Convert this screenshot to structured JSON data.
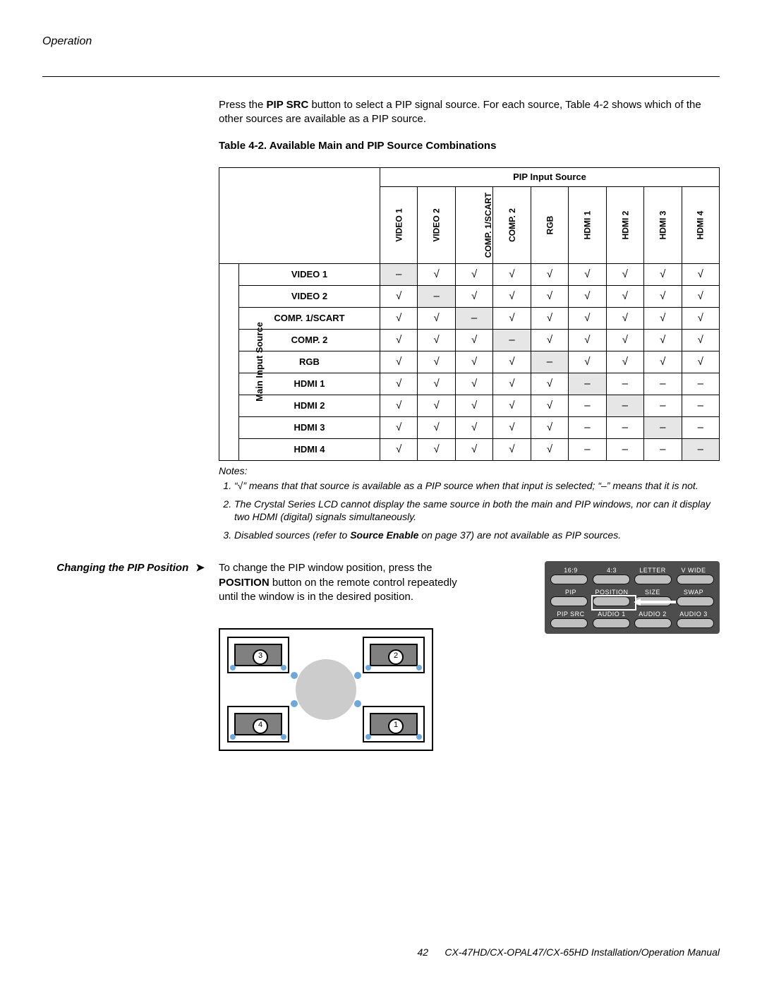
{
  "header": {
    "section": "Operation"
  },
  "intro": {
    "pre": "Press the ",
    "bold": "PIP SRC",
    "post": " button to select a PIP signal source. For each source, Table 4-2 shows which of the other sources are available as a PIP source."
  },
  "table": {
    "caption": "Table 4-2. Available Main and PIP Source Combinations",
    "pipHeader": "PIP Input Source",
    "mainHeader": "Main Input Source",
    "columns": [
      "VIDEO 1",
      "VIDEO 2",
      "COMP. 1/SCART",
      "COMP. 2",
      "RGB",
      "HDMI 1",
      "HDMI 2",
      "HDMI 3",
      "HDMI 4"
    ],
    "rows": [
      "VIDEO 1",
      "VIDEO 2",
      "COMP. 1/SCART",
      "COMP. 2",
      "RGB",
      "HDMI 1",
      "HDMI 2",
      "HDMI 3",
      "HDMI 4"
    ],
    "check": "√",
    "dash": "–",
    "matrix": [
      [
        "d",
        "c",
        "c",
        "c",
        "c",
        "c",
        "c",
        "c",
        "c"
      ],
      [
        "c",
        "d",
        "c",
        "c",
        "c",
        "c",
        "c",
        "c",
        "c"
      ],
      [
        "c",
        "c",
        "d",
        "c",
        "c",
        "c",
        "c",
        "c",
        "c"
      ],
      [
        "c",
        "c",
        "c",
        "d",
        "c",
        "c",
        "c",
        "c",
        "c"
      ],
      [
        "c",
        "c",
        "c",
        "c",
        "d",
        "c",
        "c",
        "c",
        "c"
      ],
      [
        "c",
        "c",
        "c",
        "c",
        "c",
        "d",
        "x",
        "x",
        "x"
      ],
      [
        "c",
        "c",
        "c",
        "c",
        "c",
        "x",
        "d",
        "x",
        "x"
      ],
      [
        "c",
        "c",
        "c",
        "c",
        "c",
        "x",
        "x",
        "d",
        "x"
      ],
      [
        "c",
        "c",
        "c",
        "c",
        "c",
        "x",
        "x",
        "x",
        "d"
      ]
    ]
  },
  "notes": {
    "label": "Notes:",
    "items": [
      {
        "t": "“√” means that that source is available as a PIP source when that input is selected; “–” means that it is not."
      },
      {
        "t": "The Crystal Series LCD cannot display the same source in both the main and PIP windows, nor can it display two HDMI (digital) signals simultaneously."
      },
      {
        "pre": "Disabled sources (refer to ",
        "bold": "Source Enable",
        "post": " on page 37) are not available as PIP sources."
      }
    ]
  },
  "side": {
    "heading": "Changing the PIP Position",
    "arrow": "➤",
    "body_pre": "To change the PIP window position, press the ",
    "body_bold": "POSITION",
    "body_post": " button on the remote control repeatedly until the window is in the desired position."
  },
  "remote": {
    "topRow": [
      "16:9",
      "4:3",
      "LETTER",
      "V WIDE"
    ],
    "midRow": [
      "PIP",
      "POSITION",
      "SIZE",
      "SWAP"
    ],
    "botRow": [
      "PIP SRC",
      "AUDIO 1",
      "AUDIO 2",
      "AUDIO 3"
    ]
  },
  "posDiagram": {
    "nums": {
      "tl": "3",
      "tr": "2",
      "bl": "4",
      "br": "1"
    }
  },
  "footer": {
    "page": "42",
    "title": "CX-47HD/CX-OPAL47/CX-65HD Installation/Operation Manual"
  }
}
